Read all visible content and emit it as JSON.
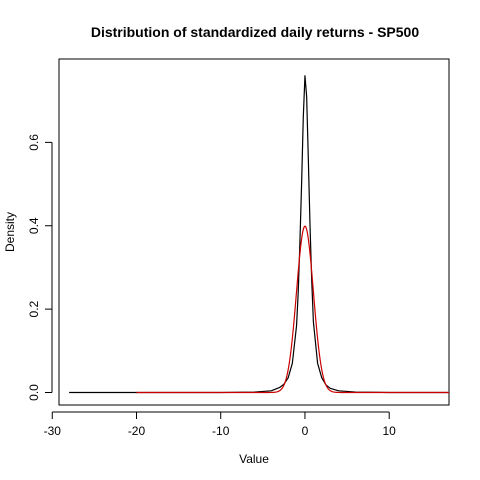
{
  "chart_data": {
    "type": "line",
    "title": "Distribution of standardized daily returns - SP500",
    "xlabel": "Value",
    "ylabel": "Density",
    "xlim": [
      -29.2,
      17.1
    ],
    "ylim": [
      -0.03,
      0.8
    ],
    "x_ticks": [
      -30,
      -20,
      -10,
      0,
      10
    ],
    "y_ticks": [
      0.0,
      0.2,
      0.4,
      0.6
    ],
    "x_tick_labels": [
      "-30",
      "-20",
      "-10",
      "0",
      "10"
    ],
    "y_tick_labels": [
      "0.0",
      "0.2",
      "0.4",
      "0.6"
    ],
    "grid": false,
    "legend": "none",
    "series": [
      {
        "color": "#000000",
        "points": [
          [
            -28.0,
            0.0
          ],
          [
            -10.0,
            0.0
          ],
          [
            -6.0,
            0.001
          ],
          [
            -4.0,
            0.004
          ],
          [
            -3.0,
            0.012
          ],
          [
            -2.5,
            0.02
          ],
          [
            -2.0,
            0.035
          ],
          [
            -1.5,
            0.07
          ],
          [
            -1.0,
            0.16
          ],
          [
            -0.8,
            0.24
          ],
          [
            -0.6,
            0.36
          ],
          [
            -0.4,
            0.5
          ],
          [
            -0.2,
            0.66
          ],
          [
            0.0,
            0.76
          ],
          [
            0.2,
            0.71
          ],
          [
            0.4,
            0.56
          ],
          [
            0.6,
            0.4
          ],
          [
            0.8,
            0.27
          ],
          [
            1.0,
            0.17
          ],
          [
            1.5,
            0.07
          ],
          [
            2.0,
            0.035
          ],
          [
            2.5,
            0.018
          ],
          [
            3.0,
            0.01
          ],
          [
            4.0,
            0.004
          ],
          [
            6.0,
            0.001
          ],
          [
            10.0,
            0.0
          ],
          [
            17.0,
            0.0
          ]
        ]
      },
      {
        "color": "#cc0000",
        "function": "standard_normal_pdf",
        "x_range": [
          -20.0,
          17.1
        ]
      }
    ]
  }
}
